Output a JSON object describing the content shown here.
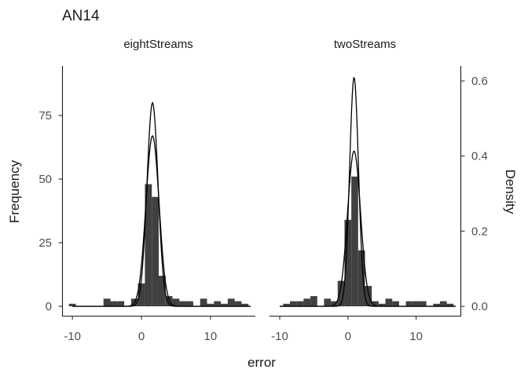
{
  "chart_data": {
    "type": "histogram",
    "title": "AN14",
    "xlabel": "error",
    "ylabel": "Frequency",
    "ylabel_right": "Density",
    "xlim": [
      -11.5,
      16.5
    ],
    "ylim": [
      0,
      94
    ],
    "xticks": [
      -10,
      0,
      10
    ],
    "xtick_labels": [
      "-10",
      "0",
      "10"
    ],
    "yticks": [
      0,
      25,
      50,
      75
    ],
    "ytick_labels": [
      "0",
      "25",
      "50",
      "75"
    ],
    "y2lim": [
      0,
      0.635
    ],
    "y2ticks": [
      0,
      0.2,
      0.4,
      0.6
    ],
    "y2tick_labels": [
      "0.0",
      "0.2",
      "0.4",
      "0.6"
    ],
    "bin_width": 1,
    "grid": false,
    "panels": [
      {
        "label": "eightStreams",
        "bins": [
          {
            "x": -10,
            "count": 1
          },
          {
            "x": -5,
            "count": 3
          },
          {
            "x": -4,
            "count": 2
          },
          {
            "x": -3,
            "count": 2
          },
          {
            "x": -1,
            "count": 3
          },
          {
            "x": 0,
            "count": 9
          },
          {
            "x": 1,
            "count": 48
          },
          {
            "x": 2,
            "count": 43
          },
          {
            "x": 3,
            "count": 12
          },
          {
            "x": 4,
            "count": 4
          },
          {
            "x": 5,
            "count": 3
          },
          {
            "x": 6,
            "count": 2
          },
          {
            "x": 7,
            "count": 2
          },
          {
            "x": 9,
            "count": 3
          },
          {
            "x": 10,
            "count": 1
          },
          {
            "x": 11,
            "count": 2
          },
          {
            "x": 12,
            "count": 1
          },
          {
            "x": 13,
            "count": 3
          },
          {
            "x": 14,
            "count": 2
          },
          {
            "x": 15,
            "count": 1
          }
        ],
        "curves": [
          {
            "mean": 1.6,
            "sd": 0.8,
            "peak_count": 80
          },
          {
            "mean": 1.6,
            "sd": 0.95,
            "peak_count": 67
          }
        ]
      },
      {
        "label": "twoStreams",
        "bins": [
          {
            "x": -9,
            "count": 1
          },
          {
            "x": -8,
            "count": 2
          },
          {
            "x": -7,
            "count": 2
          },
          {
            "x": -6,
            "count": 3
          },
          {
            "x": -5,
            "count": 4
          },
          {
            "x": -3,
            "count": 3
          },
          {
            "x": -2,
            "count": 2
          },
          {
            "x": -1,
            "count": 10
          },
          {
            "x": 0,
            "count": 34
          },
          {
            "x": 1,
            "count": 51
          },
          {
            "x": 2,
            "count": 22
          },
          {
            "x": 3,
            "count": 8
          },
          {
            "x": 4,
            "count": 2
          },
          {
            "x": 5,
            "count": 1
          },
          {
            "x": 6,
            "count": 3
          },
          {
            "x": 7,
            "count": 2
          },
          {
            "x": 9,
            "count": 2
          },
          {
            "x": 10,
            "count": 2
          },
          {
            "x": 11,
            "count": 2
          },
          {
            "x": 13,
            "count": 1
          },
          {
            "x": 14,
            "count": 2
          },
          {
            "x": 15,
            "count": 1
          }
        ],
        "curves": [
          {
            "mean": 0.9,
            "sd": 0.65,
            "peak_count": 90
          },
          {
            "mean": 0.9,
            "sd": 0.95,
            "peak_count": 61
          }
        ]
      }
    ]
  }
}
